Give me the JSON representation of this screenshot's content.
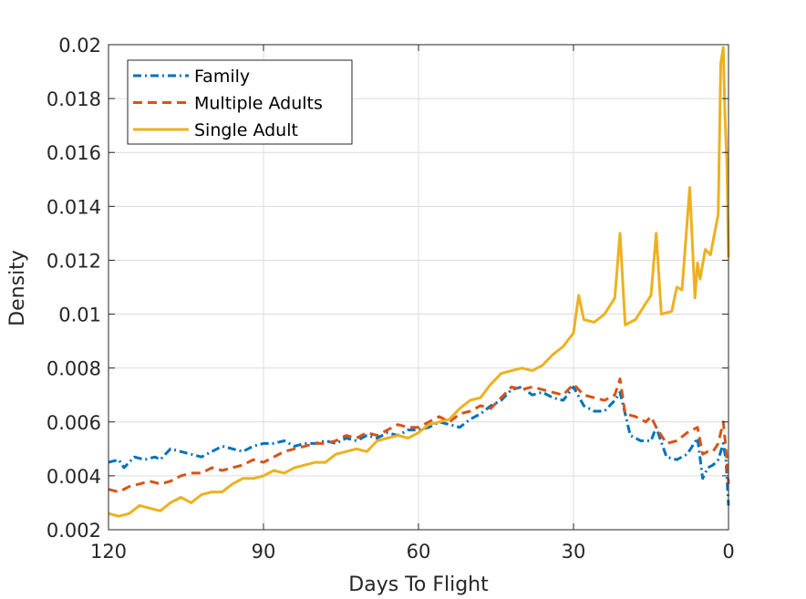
{
  "chart_data": {
    "type": "line",
    "xlabel": "Days To Flight",
    "ylabel": "Density",
    "xlim": [
      120,
      0
    ],
    "ylim": [
      0.002,
      0.02
    ],
    "x_reversed": true,
    "grid": true,
    "legend_position": "top-left",
    "xticks": [
      120,
      90,
      60,
      30,
      0
    ],
    "xtick_labels": [
      "120",
      "90",
      "60",
      "30",
      "0"
    ],
    "yticks": [
      0.002,
      0.004,
      0.006,
      0.008,
      0.01,
      0.012,
      0.014,
      0.016,
      0.018,
      0.02
    ],
    "ytick_labels": [
      "0.002",
      "0.004",
      "0.006",
      "0.008",
      "0.01",
      "0.012",
      "0.014",
      "0.016",
      "0.018",
      "0.02"
    ],
    "series": [
      {
        "name": "Family",
        "color": "#0072BD",
        "dash": "dashdot",
        "points": [
          [
            120,
            0.0045
          ],
          [
            118,
            0.0046
          ],
          [
            117,
            0.0043
          ],
          [
            115,
            0.0047
          ],
          [
            113,
            0.0046
          ],
          [
            111,
            0.0047
          ],
          [
            110,
            0.0046
          ],
          [
            108,
            0.005
          ],
          [
            106,
            0.0049
          ],
          [
            104,
            0.0048
          ],
          [
            102,
            0.0047
          ],
          [
            100,
            0.0049
          ],
          [
            98,
            0.0051
          ],
          [
            96,
            0.005
          ],
          [
            94,
            0.0049
          ],
          [
            92,
            0.0051
          ],
          [
            90,
            0.0052
          ],
          [
            88,
            0.0052
          ],
          [
            86,
            0.0053
          ],
          [
            84,
            0.0051
          ],
          [
            82,
            0.0052
          ],
          [
            80,
            0.0052
          ],
          [
            78,
            0.0053
          ],
          [
            76,
            0.0052
          ],
          [
            74,
            0.0054
          ],
          [
            72,
            0.0053
          ],
          [
            70,
            0.0055
          ],
          [
            68,
            0.0054
          ],
          [
            66,
            0.0056
          ],
          [
            64,
            0.0055
          ],
          [
            62,
            0.0057
          ],
          [
            60,
            0.0057
          ],
          [
            58,
            0.0058
          ],
          [
            56,
            0.006
          ],
          [
            54,
            0.0059
          ],
          [
            52,
            0.0058
          ],
          [
            50,
            0.0061
          ],
          [
            48,
            0.0063
          ],
          [
            46,
            0.0066
          ],
          [
            44,
            0.0068
          ],
          [
            42,
            0.0072
          ],
          [
            40,
            0.0073
          ],
          [
            38,
            0.007
          ],
          [
            36,
            0.0071
          ],
          [
            34,
            0.0069
          ],
          [
            32,
            0.0068
          ],
          [
            30,
            0.0073
          ],
          [
            28,
            0.0066
          ],
          [
            26,
            0.0064
          ],
          [
            24,
            0.0064
          ],
          [
            22,
            0.0068
          ],
          [
            21,
            0.0071
          ],
          [
            20,
            0.0063
          ],
          [
            19,
            0.0055
          ],
          [
            17,
            0.0053
          ],
          [
            15,
            0.0053
          ],
          [
            14,
            0.0058
          ],
          [
            12,
            0.0047
          ],
          [
            10,
            0.0046
          ],
          [
            8,
            0.0048
          ],
          [
            6,
            0.0054
          ],
          [
            5,
            0.0039
          ],
          [
            4,
            0.0043
          ],
          [
            3,
            0.0044
          ],
          [
            2,
            0.0046
          ],
          [
            1,
            0.0052
          ],
          [
            0.5,
            0.0046
          ],
          [
            0,
            0.0029
          ]
        ]
      },
      {
        "name": "Multiple Adults",
        "color": "#D95319",
        "dash": "dashed",
        "points": [
          [
            120,
            0.0035
          ],
          [
            118,
            0.0034
          ],
          [
            116,
            0.0036
          ],
          [
            114,
            0.0037
          ],
          [
            112,
            0.0038
          ],
          [
            110,
            0.0037
          ],
          [
            108,
            0.0038
          ],
          [
            106,
            0.004
          ],
          [
            104,
            0.0041
          ],
          [
            102,
            0.0041
          ],
          [
            100,
            0.0043
          ],
          [
            98,
            0.0042
          ],
          [
            96,
            0.0043
          ],
          [
            94,
            0.0044
          ],
          [
            92,
            0.0046
          ],
          [
            90,
            0.0045
          ],
          [
            88,
            0.0047
          ],
          [
            86,
            0.0049
          ],
          [
            84,
            0.005
          ],
          [
            82,
            0.0051
          ],
          [
            80,
            0.0052
          ],
          [
            78,
            0.0052
          ],
          [
            76,
            0.0053
          ],
          [
            74,
            0.0055
          ],
          [
            72,
            0.0054
          ],
          [
            70,
            0.0056
          ],
          [
            68,
            0.0055
          ],
          [
            66,
            0.0057
          ],
          [
            64,
            0.0059
          ],
          [
            62,
            0.0058
          ],
          [
            60,
            0.0058
          ],
          [
            58,
            0.006
          ],
          [
            56,
            0.0062
          ],
          [
            54,
            0.006
          ],
          [
            52,
            0.0063
          ],
          [
            50,
            0.0064
          ],
          [
            48,
            0.0066
          ],
          [
            46,
            0.0065
          ],
          [
            44,
            0.0069
          ],
          [
            42,
            0.0073
          ],
          [
            40,
            0.0072
          ],
          [
            38,
            0.0073
          ],
          [
            36,
            0.0072
          ],
          [
            34,
            0.0071
          ],
          [
            32,
            0.007
          ],
          [
            30,
            0.0074
          ],
          [
            28,
            0.007
          ],
          [
            26,
            0.0069
          ],
          [
            24,
            0.0068
          ],
          [
            22,
            0.007
          ],
          [
            21,
            0.0076
          ],
          [
            20,
            0.0063
          ],
          [
            18,
            0.0062
          ],
          [
            16,
            0.006
          ],
          [
            15,
            0.0062
          ],
          [
            14,
            0.0058
          ],
          [
            12,
            0.0052
          ],
          [
            10,
            0.0053
          ],
          [
            8,
            0.0056
          ],
          [
            6,
            0.0058
          ],
          [
            5,
            0.0048
          ],
          [
            4,
            0.0049
          ],
          [
            3,
            0.0049
          ],
          [
            2,
            0.0052
          ],
          [
            1,
            0.006
          ],
          [
            0.5,
            0.005
          ],
          [
            0,
            0.0037
          ]
        ]
      },
      {
        "name": "Single Adult",
        "color": "#EDB120",
        "dash": "solid",
        "points": [
          [
            120,
            0.0026
          ],
          [
            118,
            0.0025
          ],
          [
            116,
            0.0026
          ],
          [
            114,
            0.0029
          ],
          [
            112,
            0.0028
          ],
          [
            110,
            0.0027
          ],
          [
            108,
            0.003
          ],
          [
            106,
            0.0032
          ],
          [
            104,
            0.003
          ],
          [
            102,
            0.0033
          ],
          [
            100,
            0.0034
          ],
          [
            98,
            0.0034
          ],
          [
            96,
            0.0037
          ],
          [
            94,
            0.0039
          ],
          [
            92,
            0.0039
          ],
          [
            90,
            0.004
          ],
          [
            88,
            0.0042
          ],
          [
            86,
            0.0041
          ],
          [
            84,
            0.0043
          ],
          [
            82,
            0.0044
          ],
          [
            80,
            0.0045
          ],
          [
            78,
            0.0045
          ],
          [
            76,
            0.0048
          ],
          [
            74,
            0.0049
          ],
          [
            72,
            0.005
          ],
          [
            70,
            0.0049
          ],
          [
            68,
            0.0053
          ],
          [
            66,
            0.0054
          ],
          [
            64,
            0.0055
          ],
          [
            62,
            0.0054
          ],
          [
            60,
            0.0056
          ],
          [
            58,
            0.0059
          ],
          [
            56,
            0.006
          ],
          [
            54,
            0.0061
          ],
          [
            52,
            0.0065
          ],
          [
            50,
            0.0068
          ],
          [
            48,
            0.0069
          ],
          [
            46,
            0.0074
          ],
          [
            44,
            0.0078
          ],
          [
            42,
            0.0079
          ],
          [
            40,
            0.008
          ],
          [
            38,
            0.0079
          ],
          [
            36,
            0.0081
          ],
          [
            34,
            0.0085
          ],
          [
            32,
            0.0088
          ],
          [
            30,
            0.0093
          ],
          [
            29,
            0.0107
          ],
          [
            28,
            0.0098
          ],
          [
            26,
            0.0097
          ],
          [
            24,
            0.01
          ],
          [
            22,
            0.0106
          ],
          [
            21,
            0.013
          ],
          [
            20,
            0.0096
          ],
          [
            18,
            0.0098
          ],
          [
            16,
            0.0104
          ],
          [
            15,
            0.0107
          ],
          [
            14,
            0.013
          ],
          [
            13,
            0.01
          ],
          [
            11,
            0.0101
          ],
          [
            10,
            0.011
          ],
          [
            9,
            0.0109
          ],
          [
            7.5,
            0.0147
          ],
          [
            6.5,
            0.0106
          ],
          [
            6,
            0.0119
          ],
          [
            5.5,
            0.0113
          ],
          [
            4.5,
            0.0124
          ],
          [
            3.5,
            0.0122
          ],
          [
            2,
            0.0137
          ],
          [
            1.5,
            0.0193
          ],
          [
            1,
            0.0199
          ],
          [
            0.7,
            0.0175
          ],
          [
            0.3,
            0.0155
          ],
          [
            0,
            0.0121
          ]
        ]
      }
    ]
  }
}
